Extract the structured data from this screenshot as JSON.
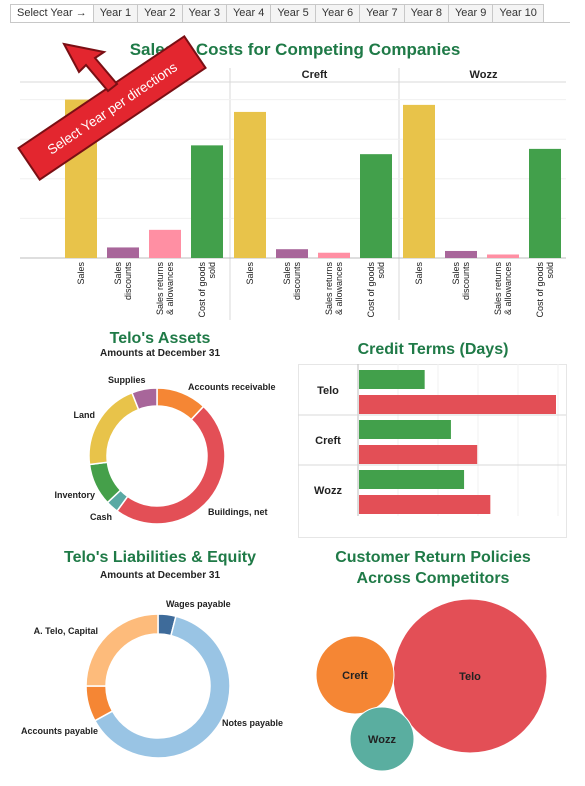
{
  "tabs": [
    "Select Year →",
    "Year 1",
    "Year 2",
    "Year 3",
    "Year 4",
    "Year 5",
    "Year 6",
    "Year 7",
    "Year 8",
    "Year 9",
    "Year 10"
  ],
  "banner": "Select Year per directions",
  "sales_chart": {
    "title": "Sales & Costs for Competing Companies",
    "companies": [
      "Telo",
      "Creft",
      "Wozz"
    ],
    "categories": [
      "Sales",
      "Sales discounts",
      "Sales returns & allowances",
      "Cost of goods sold"
    ],
    "category_lines": [
      [
        "Sales"
      ],
      [
        "Sales",
        "discounts"
      ],
      [
        "Sales returns",
        "& allowances"
      ],
      [
        "Cost of goods",
        "sold"
      ]
    ],
    "colors": [
      "#e8c34a",
      "#a8669a",
      "#ff8fa3",
      "#42a04b"
    ],
    "ymax": 100,
    "values": {
      "Telo": [
        90,
        6,
        16,
        64
      ],
      "Creft": [
        83,
        5,
        3,
        59
      ],
      "Wozz": [
        87,
        4,
        2,
        62
      ]
    }
  },
  "assets": {
    "title": "Telo's Assets",
    "subtitle": "Amounts at December 31",
    "slices": [
      {
        "label": "Accounts receivable",
        "value": 12,
        "color": "#f58634"
      },
      {
        "label": "Buildings, net",
        "value": 48,
        "color": "#e34f56"
      },
      {
        "label": "Cash",
        "value": 3,
        "color": "#5aa9a4"
      },
      {
        "label": "Inventory",
        "value": 10,
        "color": "#45a04a"
      },
      {
        "label": "Land",
        "value": 21,
        "color": "#e8c34a"
      },
      {
        "label": "Supplies",
        "value": 6,
        "color": "#a8669a"
      }
    ]
  },
  "credit": {
    "title": "Credit Terms (Days)",
    "companies": [
      "Telo",
      "Creft",
      "Wozz"
    ],
    "series_colors": [
      "#42a04b",
      "#e34f56"
    ],
    "values": {
      "Telo": [
        10,
        30
      ],
      "Creft": [
        14,
        18
      ],
      "Wozz": [
        16,
        20
      ]
    },
    "xmax": 30
  },
  "liabilities": {
    "title": "Telo's Liabilities & Equity",
    "subtitle": "Amounts at December 31",
    "slices": [
      {
        "label": "Wages payable",
        "value": 4,
        "color": "#3e6b9a"
      },
      {
        "label": "Notes payable",
        "value": 63,
        "color": "#99c4e4"
      },
      {
        "label": "Accounts payable",
        "value": 8,
        "color": "#f58634"
      },
      {
        "label": "A. Telo, Capital",
        "value": 25,
        "color": "#fdbb7b"
      }
    ]
  },
  "returns": {
    "title_line1": "Customer Return Policies",
    "title_line2": "Across Competitors",
    "bubbles": [
      {
        "label": "Telo",
        "value": 100,
        "color": "#e34f56"
      },
      {
        "label": "Creft",
        "value": 25,
        "color": "#f58634"
      },
      {
        "label": "Wozz",
        "value": 17,
        "color": "#5aaea0"
      }
    ]
  }
}
